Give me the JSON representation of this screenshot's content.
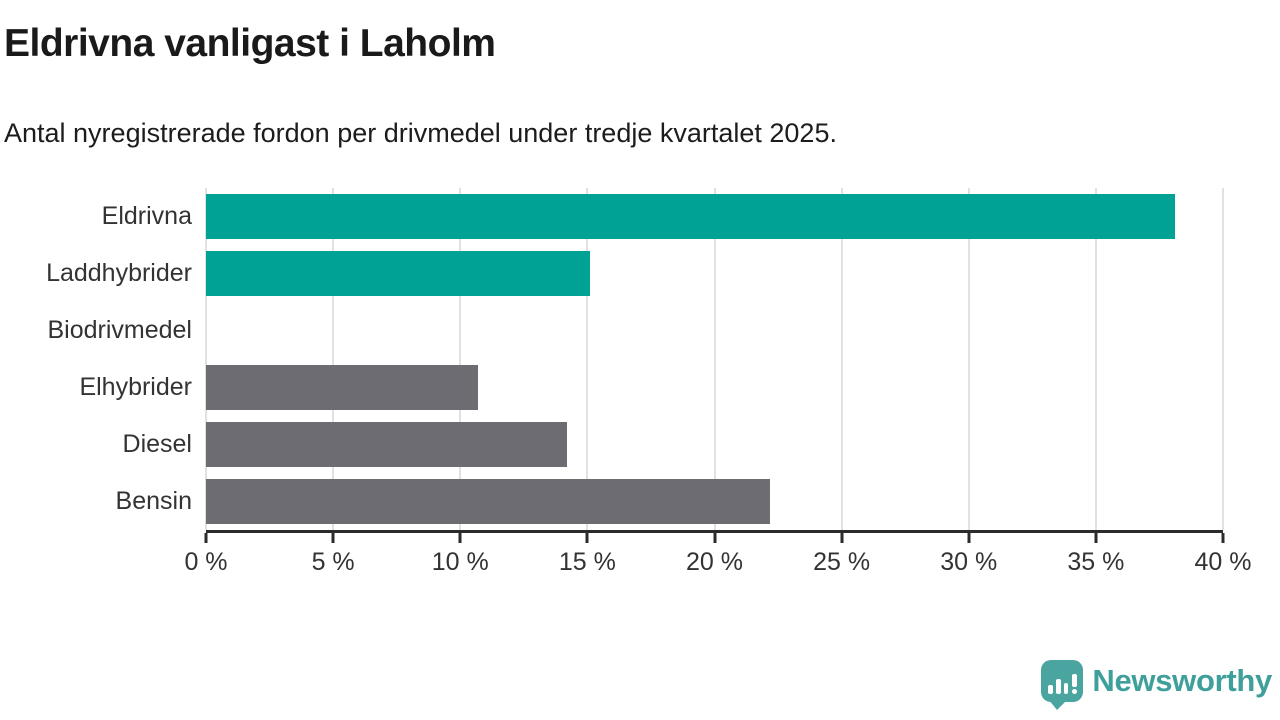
{
  "header": {
    "title": "Eldrivna vanligast i Laholm",
    "subtitle": "Antal nyregistrerade fordon per drivmedel under tredje kvartalet 2025."
  },
  "chart_data": {
    "type": "bar",
    "orientation": "horizontal",
    "title": "Eldrivna vanligast i Laholm",
    "subtitle": "Antal nyregistrerade fordon per drivmedel under tredje kvartalet 2025.",
    "categories": [
      "Eldrivna",
      "Laddhybrider",
      "Biodrivmedel",
      "Elhybrider",
      "Diesel",
      "Bensin"
    ],
    "values": [
      38.1,
      15.1,
      0,
      10.7,
      14.2,
      22.2
    ],
    "unit": "%",
    "xlim": [
      0,
      40
    ],
    "x_ticks": [
      0,
      5,
      10,
      15,
      20,
      25,
      30,
      35,
      40
    ],
    "x_tick_labels": [
      "0 %",
      "5 %",
      "10 %",
      "15 %",
      "20 %",
      "25 %",
      "30 %",
      "35 %",
      "40 %"
    ],
    "bar_colors": [
      "#00a296",
      "#00a296",
      "#6c6c72",
      "#6c6c72",
      "#6c6c72",
      "#6c6c72"
    ],
    "grid": "vertical",
    "legend": "none",
    "xlabel": "",
    "ylabel": ""
  },
  "colors": {
    "accent_teal": "#00a296",
    "bar_gray": "#6c6c72",
    "gridline": "#e1e1e1",
    "axis": "#2b2b2b",
    "logo_teal": "#4aa5a1",
    "logo_text_teal": "#3f9f9b"
  },
  "branding": {
    "logo_text": "Newsworthy",
    "logo_icon": "newsworthy-chart-bubble-icon"
  }
}
